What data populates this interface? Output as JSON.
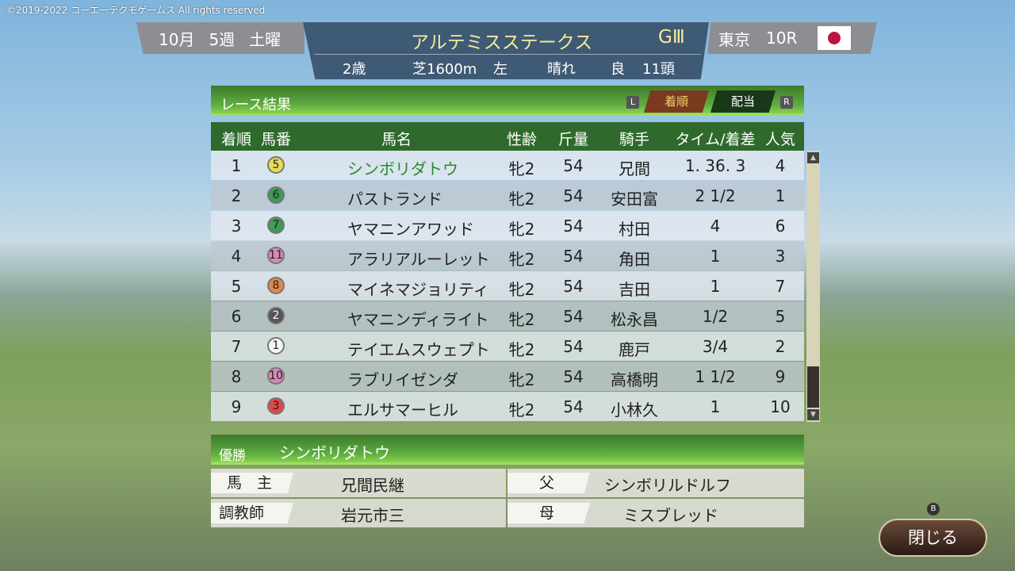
{
  "copyright": "©2019-2022 コーエーテクモゲームス All rights reserved.",
  "header": {
    "month": "10月",
    "week": "5週",
    "day": "土曜",
    "race_name": "アルテミスステークス",
    "grade": "GⅢ",
    "age": "2歳",
    "course": "芝1600m",
    "direction": "左",
    "weather": "晴れ",
    "track": "良",
    "runners": "11頭",
    "venue": "東京",
    "race_no": "10R",
    "flag": "japan-flag"
  },
  "results": {
    "title": "レース結果",
    "key_l": "L",
    "key_r": "R",
    "tabs": [
      {
        "label": "着順",
        "active": true
      },
      {
        "label": "配当",
        "active": false
      }
    ]
  },
  "columns": [
    "着順",
    "馬番",
    "馬名",
    "性齢",
    "斤量",
    "騎手",
    "タイム/着差",
    "人気"
  ],
  "rows": [
    {
      "pos": "1",
      "num": "5",
      "color": "#e6dc50",
      "name": "シンボリダトウ",
      "sexage": "牝2",
      "weight": "54",
      "jockey": "兄間",
      "time": "1. 36. 3",
      "pop": "4",
      "winner": true
    },
    {
      "pos": "2",
      "num": "6",
      "color": "#3f9a55",
      "name": "パストランド",
      "sexage": "牝2",
      "weight": "54",
      "jockey": "安田富",
      "time": "2  1/2",
      "pop": "1"
    },
    {
      "pos": "3",
      "num": "7",
      "color": "#3f9a55",
      "name": "ヤマニンアワッド",
      "sexage": "牝2",
      "weight": "54",
      "jockey": "村田",
      "time": "4",
      "pop": "6"
    },
    {
      "pos": "4",
      "num": "11",
      "color": "#d888b8",
      "name": "アラリアルーレット",
      "sexage": "牝2",
      "weight": "54",
      "jockey": "角田",
      "time": "1",
      "pop": "3"
    },
    {
      "pos": "5",
      "num": "8",
      "color": "#e08848",
      "name": "マイネマジョリティ",
      "sexage": "牝2",
      "weight": "54",
      "jockey": "吉田",
      "time": "1",
      "pop": "7"
    },
    {
      "pos": "6",
      "num": "2",
      "color": "#555555",
      "name": "ヤマニンディライト",
      "sexage": "牝2",
      "weight": "54",
      "jockey": "松永昌",
      "time": "1/2",
      "pop": "5"
    },
    {
      "pos": "7",
      "num": "1",
      "color": "#f4f4f4",
      "name": "テイエムスウェプト",
      "sexage": "牝2",
      "weight": "54",
      "jockey": "鹿戸",
      "time": "3/4",
      "pop": "2"
    },
    {
      "pos": "8",
      "num": "10",
      "color": "#d888b8",
      "name": "ラブリイゼンダ",
      "sexage": "牝2",
      "weight": "54",
      "jockey": "高橋明",
      "time": "1  1/2",
      "pop": "9"
    },
    {
      "pos": "9",
      "num": "3",
      "color": "#e04848",
      "name": "エルサマーヒル",
      "sexage": "牝2",
      "weight": "54",
      "jockey": "小林久",
      "time": "1",
      "pop": "10"
    }
  ],
  "winner": {
    "label": "優勝",
    "name": "シンボリダトウ",
    "owner_label": "馬　主",
    "owner": "兄間民継",
    "trainer_label": "調教師",
    "trainer": "岩元市三",
    "sire_label": "父",
    "sire": "シンボリルドルフ",
    "dam_label": "母",
    "dam": "ミスブレッド"
  },
  "close": {
    "key": "B",
    "label": "閉じる"
  }
}
